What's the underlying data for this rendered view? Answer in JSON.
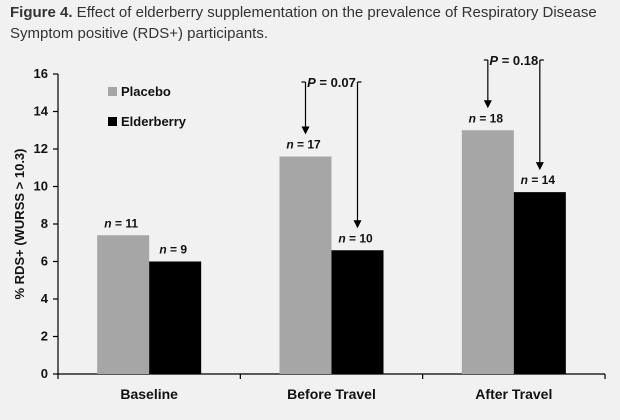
{
  "caption": {
    "label": "Figure 4.",
    "text": " Effect of elderberry supplementation on the prevalence of Respiratory Disease Symptom positive (RDS+) participants."
  },
  "chart_data": {
    "type": "bar",
    "title": "Effect of elderberry supplementation on the prevalence of Respiratory Disease Symptom positive (RDS+) participants.",
    "xlabel": "",
    "ylabel": "% RDS+ (WURSS > 10.3)",
    "ylim": [
      0,
      16
    ],
    "yticks": [
      0,
      2,
      4,
      6,
      8,
      10,
      12,
      14,
      16
    ],
    "categories": [
      "Baseline",
      "Before Travel",
      "After Travel"
    ],
    "series": [
      {
        "name": "Placebo",
        "color": "#a6a6a6",
        "values": [
          7.4,
          11.6,
          13.0
        ],
        "labels": [
          "n = 11",
          "n = 17",
          "n = 18"
        ]
      },
      {
        "name": "Elderberry",
        "color": "#000000",
        "values": [
          6.0,
          6.6,
          9.7
        ],
        "labels": [
          "n = 9",
          "n = 10",
          "n = 14"
        ]
      }
    ],
    "annotations": [
      {
        "category": "Before Travel",
        "text": "P = 0.07"
      },
      {
        "category": "After Travel",
        "text": "P = 0.18"
      }
    ],
    "legend": "top-left"
  }
}
